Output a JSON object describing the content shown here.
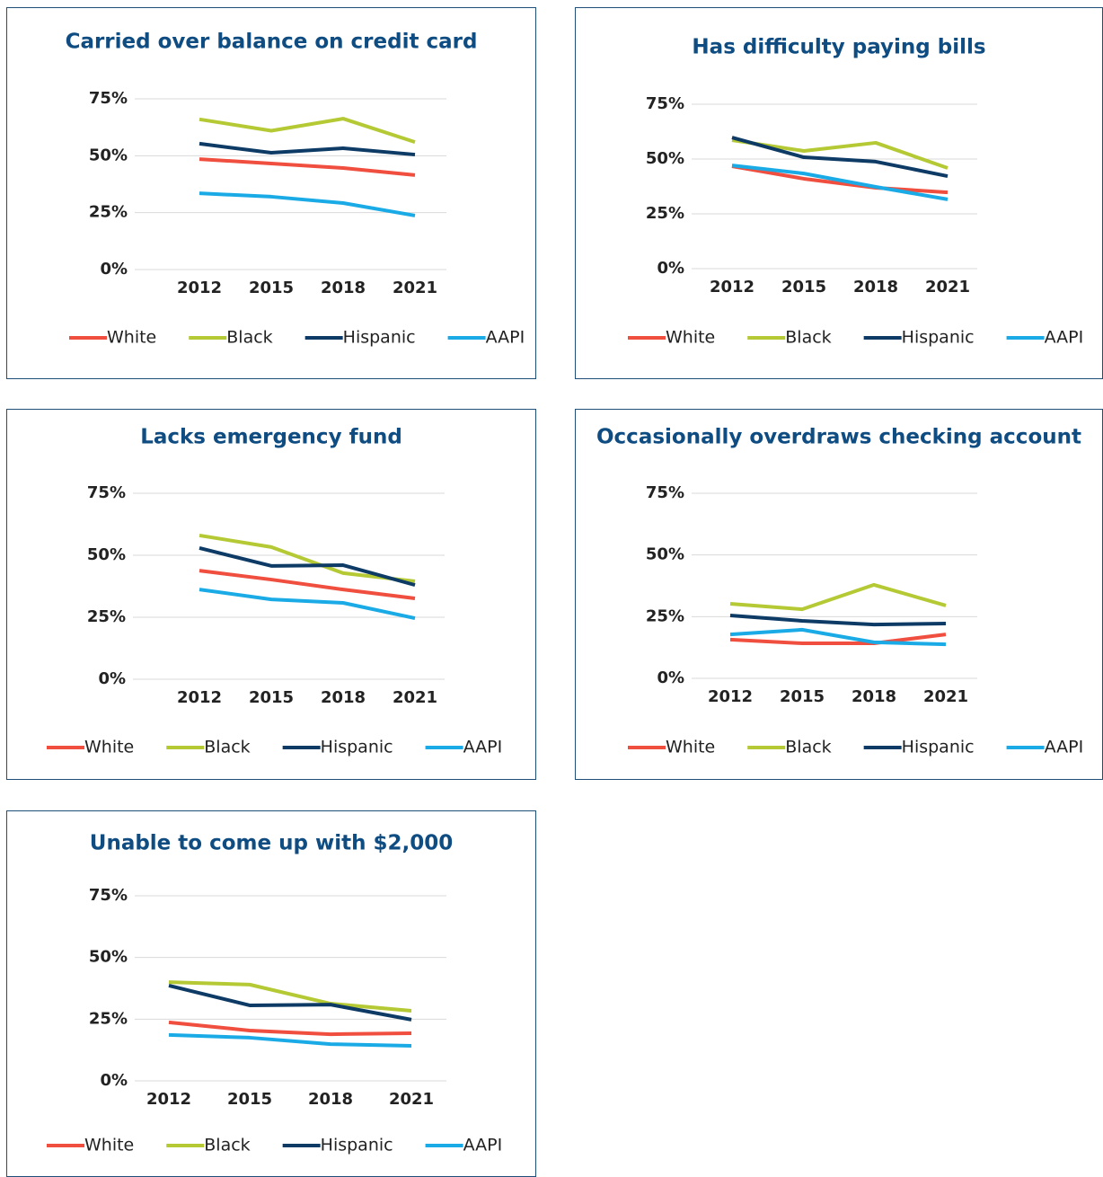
{
  "chart_data": [
    {
      "type": "line",
      "title": "Carried over balance on credit card",
      "categories": [
        "2012",
        "2015",
        "2018",
        "2021"
      ],
      "series": [
        {
          "name": "White",
          "color": "#f04e3e",
          "values": [
            48.5,
            46.6,
            44.6,
            41.5
          ]
        },
        {
          "name": "Black",
          "color": "#b5c934",
          "values": [
            66,
            61,
            66.3,
            56
          ]
        },
        {
          "name": "Hispanic",
          "color": "#0d3b66",
          "values": [
            55.3,
            51.3,
            53.3,
            50.5
          ]
        },
        {
          "name": "AAPI",
          "color": "#1aabe6",
          "values": [
            33.5,
            32,
            29.2,
            23.7
          ]
        }
      ],
      "ylim": [
        0,
        75
      ],
      "yticks": [
        {
          "value": 0,
          "label": "0%"
        },
        {
          "value": 25,
          "label": "25%"
        },
        {
          "value": 50,
          "label": "50%"
        },
        {
          "value": 75,
          "label": "75%"
        }
      ],
      "grid": true,
      "legend": "bottom"
    },
    {
      "type": "line",
      "title": "Has difficulty paying bills",
      "categories": [
        "2012",
        "2015",
        "2018",
        "2021"
      ],
      "series": [
        {
          "name": "White",
          "color": "#f04e3e",
          "values": [
            46.7,
            41,
            36.9,
            34.8
          ]
        },
        {
          "name": "Black",
          "color": "#b5c934",
          "values": [
            58.6,
            53.7,
            57.4,
            45.9
          ]
        },
        {
          "name": "Hispanic",
          "color": "#0d3b66",
          "values": [
            59.8,
            50.8,
            48.8,
            42.2
          ]
        },
        {
          "name": "AAPI",
          "color": "#1aabe6",
          "values": [
            47.1,
            43.4,
            37.3,
            31.6
          ]
        }
      ],
      "ylim": [
        0,
        75
      ],
      "yticks": [
        {
          "value": 0,
          "label": "0%"
        },
        {
          "value": 25,
          "label": "25%"
        },
        {
          "value": 50,
          "label": "50%"
        },
        {
          "value": 75,
          "label": "75%"
        }
      ],
      "grid": true,
      "legend": "bottom"
    },
    {
      "type": "line",
      "title": "Lacks emergency fund",
      "categories": [
        "2012",
        "2015",
        "2018",
        "2021"
      ],
      "series": [
        {
          "name": "White",
          "color": "#f04e3e",
          "values": [
            43.8,
            40.2,
            36.2,
            32.6
          ]
        },
        {
          "name": "Black",
          "color": "#b5c934",
          "values": [
            58,
            53.3,
            42.8,
            39.5
          ]
        },
        {
          "name": "Hispanic",
          "color": "#0d3b66",
          "values": [
            52.9,
            45.7,
            46,
            38
          ]
        },
        {
          "name": "AAPI",
          "color": "#1aabe6",
          "values": [
            36.2,
            32.2,
            30.8,
            24.6
          ]
        }
      ],
      "ylim": [
        0,
        75
      ],
      "yticks": [
        {
          "value": 0,
          "label": "0%"
        },
        {
          "value": 25,
          "label": "25%"
        },
        {
          "value": 50,
          "label": "50%"
        },
        {
          "value": 75,
          "label": "75%"
        }
      ],
      "grid": true,
      "legend": "bottom"
    },
    {
      "type": "line",
      "title": "Occasionally overdraws checking account",
      "categories": [
        "2012",
        "2015",
        "2018",
        "2021"
      ],
      "series": [
        {
          "name": "White",
          "color": "#f04e3e",
          "values": [
            15.7,
            14.2,
            14.2,
            17.8
          ]
        },
        {
          "name": "Black",
          "color": "#b5c934",
          "values": [
            30.2,
            28,
            37.9,
            29.5
          ]
        },
        {
          "name": "Hispanic",
          "color": "#0d3b66",
          "values": [
            25.5,
            23.3,
            21.8,
            22.2
          ]
        },
        {
          "name": "AAPI",
          "color": "#1aabe6",
          "values": [
            17.8,
            19.7,
            14.6,
            13.8
          ]
        }
      ],
      "ylim": [
        0,
        75
      ],
      "yticks": [
        {
          "value": 0,
          "label": "0%"
        },
        {
          "value": 25,
          "label": "25%"
        },
        {
          "value": 50,
          "label": "50%"
        },
        {
          "value": 75,
          "label": "75%"
        }
      ],
      "grid": true,
      "legend": "bottom"
    },
    {
      "type": "line",
      "title": "Unable to come up with $2,000",
      "categories": [
        "2012",
        "2015",
        "2018",
        "2021"
      ],
      "series": [
        {
          "name": "White",
          "color": "#f04e3e",
          "values": [
            23.7,
            20.4,
            18.9,
            19.3
          ]
        },
        {
          "name": "Black",
          "color": "#b5c934",
          "values": [
            40,
            39,
            31.3,
            28.4
          ]
        },
        {
          "name": "Hispanic",
          "color": "#0d3b66",
          "values": [
            38.6,
            30.6,
            30.9,
            24.8
          ]
        },
        {
          "name": "AAPI",
          "color": "#1aabe6",
          "values": [
            18.6,
            17.5,
            14.9,
            14.2
          ]
        }
      ],
      "ylim": [
        0,
        75
      ],
      "yticks": [
        {
          "value": 0,
          "label": "0%"
        },
        {
          "value": 25,
          "label": "25%"
        },
        {
          "value": 50,
          "label": "50%"
        },
        {
          "value": 75,
          "label": "75%"
        }
      ],
      "grid": true,
      "legend": "bottom"
    }
  ]
}
